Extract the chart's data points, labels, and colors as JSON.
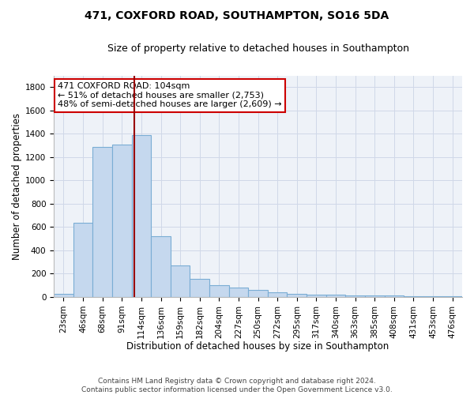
{
  "title": "471, COXFORD ROAD, SOUTHAMPTON, SO16 5DA",
  "subtitle": "Size of property relative to detached houses in Southampton",
  "xlabel": "Distribution of detached houses by size in Southampton",
  "ylabel": "Number of detached properties",
  "categories": [
    "23sqm",
    "46sqm",
    "68sqm",
    "91sqm",
    "114sqm",
    "136sqm",
    "159sqm",
    "182sqm",
    "204sqm",
    "227sqm",
    "250sqm",
    "272sqm",
    "295sqm",
    "317sqm",
    "340sqm",
    "363sqm",
    "385sqm",
    "408sqm",
    "431sqm",
    "453sqm",
    "476sqm"
  ],
  "values": [
    30,
    640,
    1290,
    1310,
    1390,
    520,
    270,
    155,
    100,
    80,
    60,
    40,
    25,
    20,
    18,
    16,
    14,
    12,
    10,
    8,
    6
  ],
  "bar_color": "#c5d8ee",
  "bar_edge_color": "#7aadd4",
  "vline_x": 3.65,
  "vline_color": "#990000",
  "annotation_text": "471 COXFORD ROAD: 104sqm\n← 51% of detached houses are smaller (2,753)\n48% of semi-detached houses are larger (2,609) →",
  "annotation_box_facecolor": "#ffffff",
  "annotation_box_edgecolor": "#cc0000",
  "ylim": [
    0,
    1900
  ],
  "yticks": [
    0,
    200,
    400,
    600,
    800,
    1000,
    1200,
    1400,
    1600,
    1800
  ],
  "grid_color": "#d0d8e8",
  "bg_color": "#eef2f8",
  "footer": "Contains HM Land Registry data © Crown copyright and database right 2024.\nContains public sector information licensed under the Open Government Licence v3.0.",
  "title_fontsize": 10,
  "subtitle_fontsize": 9,
  "xlabel_fontsize": 8.5,
  "ylabel_fontsize": 8.5,
  "tick_fontsize": 7.5,
  "annotation_fontsize": 8,
  "footer_fontsize": 6.5
}
